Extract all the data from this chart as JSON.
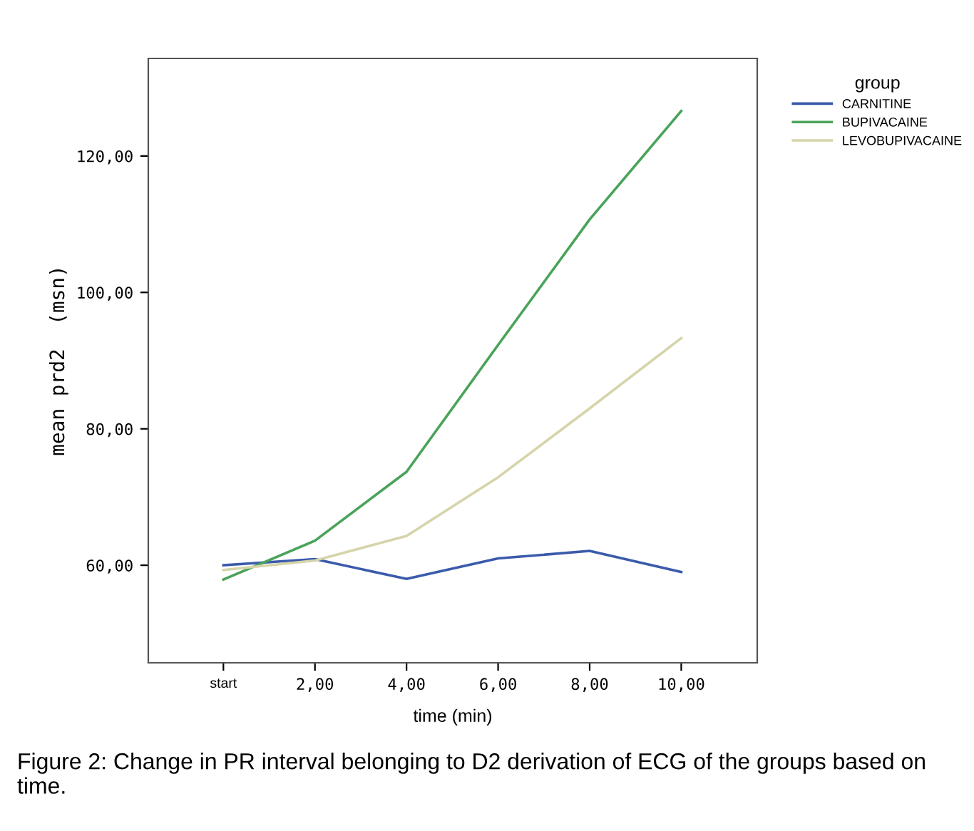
{
  "chart_data": {
    "type": "line",
    "xlabel": "time (min)",
    "ylabel": "mean prd2  (msn)",
    "legend_title": "group",
    "categories": [
      "start",
      "2,00",
      "4,00",
      "6,00",
      "8,00",
      "10,00"
    ],
    "series": [
      {
        "name": "CARNITINE",
        "color": "#3b5bab",
        "values": [
          60.0,
          60.9,
          58.0,
          61.0,
          62.1,
          59.0
        ]
      },
      {
        "name": "BUPIVACAINE",
        "color": "#4aa35a",
        "values": [
          57.9,
          63.6,
          73.7,
          92.3,
          110.7,
          126.6
        ]
      },
      {
        "name": "LEVOBUPIVACAINE",
        "color": "#d6d4aa",
        "values": [
          59.3,
          60.7,
          64.3,
          72.9,
          83.0,
          93.3
        ]
      }
    ],
    "ylim": [
      45.7,
      134.3
    ],
    "yticks": [
      {
        "value": 60,
        "label": "60,00"
      },
      {
        "value": 80,
        "label": "80,00"
      },
      {
        "value": 100,
        "label": "100,00"
      },
      {
        "value": 120,
        "label": "120,00"
      }
    ],
    "grid": false,
    "legend": "top right",
    "marker": "none",
    "line_style": "solid",
    "annotations": [
      "Figure 2: Change in PR interval belonging to D2 derivation of ECG of the groups based on time."
    ]
  }
}
